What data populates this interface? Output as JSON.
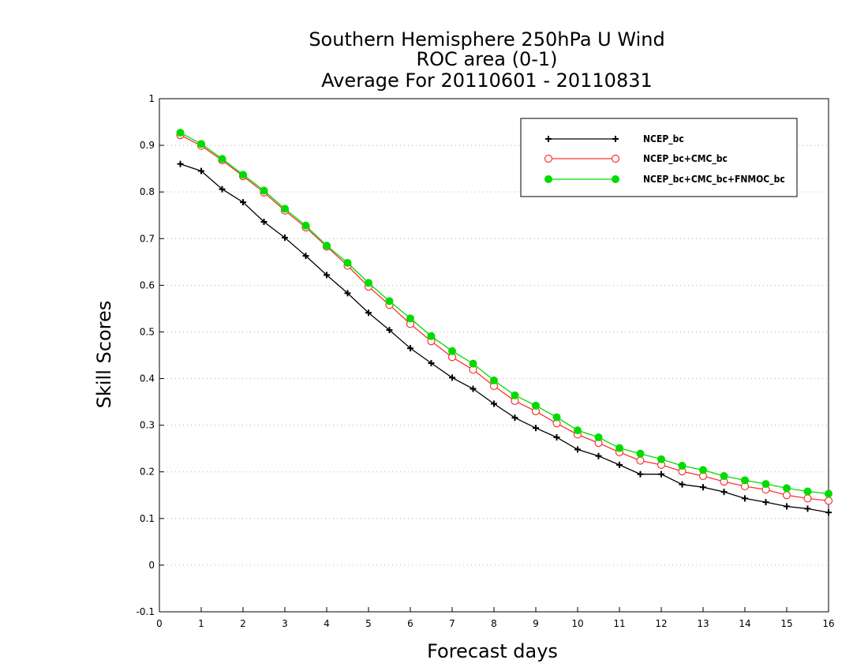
{
  "chart_data": {
    "type": "line",
    "title": "Southern Hemisphere 250hPa U Wind",
    "subtitle": "ROC area (0-1)",
    "subtitle2": "Average For 20110601 - 20110831",
    "xlabel": "Forecast days",
    "ylabel": "Skill Scores",
    "xlim": [
      0,
      16
    ],
    "ylim": [
      -0.1,
      1
    ],
    "grid": true,
    "legend_position": "top-right",
    "xticks": [
      "0",
      "1",
      "2",
      "3",
      "4",
      "5",
      "6",
      "7",
      "8",
      "9",
      "10",
      "11",
      "12",
      "13",
      "14",
      "15",
      "16"
    ],
    "yticks": [
      "-0.1",
      "0",
      "0.1",
      "0.2",
      "0.3",
      "0.4",
      "0.5",
      "0.6",
      "0.7",
      "0.8",
      "0.9",
      "1"
    ],
    "x": [
      0.5,
      1,
      1.5,
      2,
      2.5,
      3,
      3.5,
      4,
      4.5,
      5,
      5.5,
      6,
      6.5,
      7,
      7.5,
      8,
      8.5,
      9,
      9.5,
      10,
      10.5,
      11,
      11.5,
      12,
      12.5,
      13,
      13.5,
      14,
      14.5,
      15,
      15.5,
      16
    ],
    "series": [
      {
        "name": "NCEP_bc",
        "color": "#000000",
        "marker": "plus",
        "values": [
          0.86,
          0.845,
          0.806,
          0.778,
          0.736,
          0.702,
          0.663,
          0.622,
          0.583,
          0.541,
          0.504,
          0.465,
          0.433,
          0.402,
          0.378,
          0.346,
          0.316,
          0.294,
          0.274,
          0.248,
          0.234,
          0.215,
          0.195,
          0.195,
          0.173,
          0.167,
          0.157,
          0.143,
          0.135,
          0.126,
          0.121,
          0.113
        ]
      },
      {
        "name": "NCEP_bc+CMC_bc",
        "color": "#ff3030",
        "marker": "open-circle",
        "values": [
          0.922,
          0.899,
          0.868,
          0.834,
          0.799,
          0.76,
          0.724,
          0.683,
          0.642,
          0.597,
          0.558,
          0.517,
          0.48,
          0.446,
          0.419,
          0.384,
          0.352,
          0.33,
          0.304,
          0.28,
          0.262,
          0.242,
          0.224,
          0.215,
          0.201,
          0.191,
          0.179,
          0.169,
          0.162,
          0.15,
          0.143,
          0.138
        ]
      },
      {
        "name": "NCEP_bc+CMC_bc+FNMOC_bc",
        "color": "#00dc00",
        "marker": "filled-circle",
        "values": [
          0.927,
          0.903,
          0.871,
          0.837,
          0.803,
          0.764,
          0.728,
          0.685,
          0.648,
          0.605,
          0.566,
          0.529,
          0.491,
          0.459,
          0.432,
          0.396,
          0.364,
          0.342,
          0.317,
          0.289,
          0.274,
          0.251,
          0.239,
          0.227,
          0.213,
          0.204,
          0.191,
          0.182,
          0.174,
          0.165,
          0.158,
          0.153
        ]
      }
    ]
  }
}
